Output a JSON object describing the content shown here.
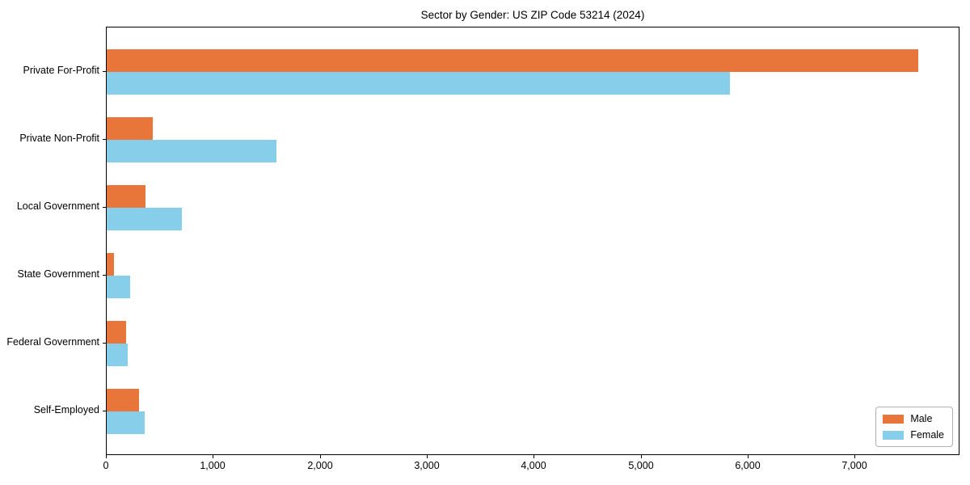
{
  "title": "Sector by Gender: US ZIP Code 53214 (2024)",
  "chart_data": {
    "type": "bar",
    "orientation": "horizontal",
    "title": "Sector by Gender: US ZIP Code 53214 (2024)",
    "categories": [
      "Private For-Profit",
      "Private Non-Profit",
      "Local Government",
      "State Government",
      "Federal Government",
      "Self-Employed"
    ],
    "series": [
      {
        "name": "Male",
        "color": "#e8763b",
        "values": [
          7590,
          430,
          365,
          65,
          185,
          300
        ]
      },
      {
        "name": "Female",
        "color": "#87ceeb",
        "values": [
          5830,
          1590,
          705,
          220,
          200,
          355
        ]
      }
    ],
    "xlabel": "",
    "ylabel": "",
    "xlim": [
      0,
      7980
    ],
    "xticks": [
      0,
      1000,
      2000,
      3000,
      4000,
      5000,
      6000,
      7000
    ],
    "xtick_labels": [
      "0",
      "1,000",
      "2,000",
      "3,000",
      "4,000",
      "5,000",
      "6,000",
      "7,000"
    ],
    "legend_position": "lower-right",
    "grid": false,
    "colors": {
      "male": "#e8763b",
      "female": "#87ceeb",
      "spine": "#000000",
      "legend_border": "#b0b0b0"
    }
  }
}
